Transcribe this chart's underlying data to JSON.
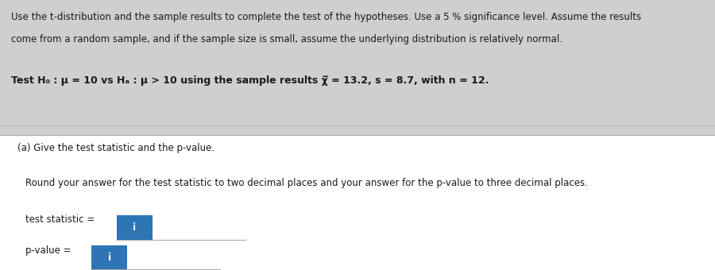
{
  "background_color": "#d0cece",
  "white_box_color": "#ffffff",
  "blue_box_color": "#2e75b6",
  "line1": "Use the t-distribution and the sample results to complete the test of the hypotheses. Use a 5 % significance level. Assume the results",
  "line2": "come from a random sample, and if the sample size is small, assume the underlying distribution is relatively normal.",
  "hypothesis_line": "Test H₀ : μ = 10 vs Hₐ : μ > 10 using the sample results χ̅ = 13.2, s = 8.7, with n = 12.",
  "part_a": "(a) Give the test statistic and the p-value.",
  "round_line": "Round your answer for the test statistic to two decimal places and your answer for the p-value to three decimal places.",
  "label_ts": "test statistic =",
  "label_pv": "p-value =",
  "separator_line_color": "#aaaaaa",
  "text_color": "#1a1a1a",
  "font_size_main": 8.5,
  "font_size_hyp": 9.0,
  "font_size_label": 8.5
}
